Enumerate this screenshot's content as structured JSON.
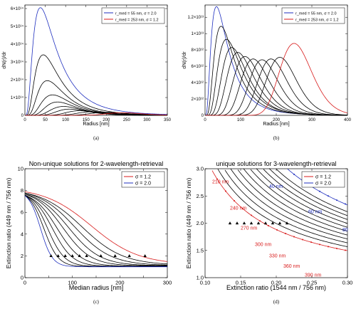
{
  "chart_data": [
    {
      "id": "a",
      "type": "line",
      "caption": "(a)",
      "xlabel": "Radius [nm]",
      "ylabel": "dN(r)/dr",
      "xlim": [
        0,
        350
      ],
      "ylim": [
        0,
        620000000000000.0
      ],
      "xticks": [
        0,
        50,
        100,
        150,
        200,
        250,
        300,
        350
      ],
      "yticks": [
        0,
        100000000000000.0,
        200000000000000.0,
        300000000000000.0,
        400000000000000.0,
        500000000000000.0,
        600000000000000.0
      ],
      "ytick_labels": [
        "0",
        "1×10¹⁴",
        "2×10¹⁴",
        "3×10¹⁴",
        "4×10¹⁴",
        "5×10¹⁴",
        "6×10¹⁴"
      ],
      "legend": [
        {
          "label": "r_med = 55 nm, σ = 2.0",
          "color": "#1f2fbf"
        },
        {
          "label": "r_med = 253 nm, σ = 1.2",
          "color": "#d81b1b"
        }
      ],
      "legend_position": "top-right",
      "curves": [
        {
          "color": "#1f2fbf",
          "peak_x": 38,
          "peak_y": 605000000000000.0,
          "width": 0.72,
          "kind": "lognormal"
        },
        {
          "color": "#000000",
          "peak_x": 45,
          "peak_y": 340000000000000.0,
          "width": 0.65,
          "kind": "lognormal"
        },
        {
          "color": "#000000",
          "peak_x": 55,
          "peak_y": 195000000000000.0,
          "width": 0.58,
          "kind": "lognormal"
        },
        {
          "color": "#000000",
          "peak_x": 68,
          "peak_y": 115000000000000.0,
          "width": 0.52,
          "kind": "lognormal"
        },
        {
          "color": "#000000",
          "peak_x": 80,
          "peak_y": 75000000000000.0,
          "width": 0.46,
          "kind": "lognormal"
        },
        {
          "color": "#000000",
          "peak_x": 95,
          "peak_y": 50000000000000.0,
          "width": 0.4,
          "kind": "lognormal"
        },
        {
          "color": "#000000",
          "peak_x": 110,
          "peak_y": 35000000000000.0,
          "width": 0.34,
          "kind": "lognormal"
        },
        {
          "color": "#000000",
          "peak_x": 135,
          "peak_y": 26000000000000.0,
          "width": 0.28,
          "kind": "lognormal"
        },
        {
          "color": "#000000",
          "peak_x": 165,
          "peak_y": 20000000000000.0,
          "width": 0.24,
          "kind": "lognormal"
        },
        {
          "color": "#000000",
          "peak_x": 200,
          "peak_y": 17000000000000.0,
          "width": 0.21,
          "kind": "lognormal"
        },
        {
          "color": "#d81b1b",
          "peak_x": 240,
          "peak_y": 14500000000000.0,
          "width": 0.18,
          "kind": "lognormal"
        }
      ]
    },
    {
      "id": "b",
      "type": "line",
      "caption": "(b)",
      "xlabel": "Radius [nm]",
      "ylabel": "dN(r)/dr",
      "xlim": [
        0,
        400
      ],
      "ylim": [
        0,
        13500000000000.0
      ],
      "xticks": [
        0,
        100,
        200,
        300,
        400
      ],
      "yticks": [
        0,
        2000000000000.0,
        4000000000000.0,
        6000000000000.0,
        8000000000000.0,
        10000000000000.0,
        12000000000000.0
      ],
      "ytick_labels": [
        "0",
        "2×10¹²",
        "4×10¹²",
        "6×10¹²",
        "8×10¹²",
        "1×10¹³",
        "1.2×10¹³"
      ],
      "legend": [
        {
          "label": "r_med = 55 nm, σ = 2.0",
          "color": "#1f2fbf"
        },
        {
          "label": "r_med = 253 nm, σ = 1.2",
          "color": "#d81b1b"
        }
      ],
      "legend_position": "top-right",
      "curves": [
        {
          "color": "#1f2fbf",
          "peak_x": 32,
          "peak_y": 13300000000000.0,
          "width": 0.72
        },
        {
          "color": "#000000",
          "peak_x": 45,
          "peak_y": 10900000000000.0,
          "width": 0.62
        },
        {
          "color": "#000000",
          "peak_x": 60,
          "peak_y": 9300000000000.0,
          "width": 0.54
        },
        {
          "color": "#000000",
          "peak_x": 75,
          "peak_y": 8300000000000.0,
          "width": 0.46
        },
        {
          "color": "#000000",
          "peak_x": 92,
          "peak_y": 7700000000000.0,
          "width": 0.4
        },
        {
          "color": "#000000",
          "peak_x": 112,
          "peak_y": 7200000000000.0,
          "width": 0.34
        },
        {
          "color": "#000000",
          "peak_x": 135,
          "peak_y": 6900000000000.0,
          "width": 0.29
        },
        {
          "color": "#000000",
          "peak_x": 160,
          "peak_y": 6800000000000.0,
          "width": 0.25
        },
        {
          "color": "#000000",
          "peak_x": 185,
          "peak_y": 6900000000000.0,
          "width": 0.22
        },
        {
          "color": "#000000",
          "peak_x": 210,
          "peak_y": 7100000000000.0,
          "width": 0.2
        },
        {
          "color": "#d81b1b",
          "peak_x": 250,
          "peak_y": 8800000000000.0,
          "width": 0.18
        }
      ]
    },
    {
      "id": "c",
      "type": "line",
      "caption": "(c)",
      "title": "Non-unique solutions for 2-wavelength-retrieval",
      "xlabel": "Median radius [nm]",
      "ylabel": "Extinction ratio (449 nm / 756 nm)",
      "xlim": [
        0,
        300
      ],
      "ylim": [
        0,
        10
      ],
      "xticks": [
        0,
        50,
        100,
        150,
        200,
        250,
        300
      ],
      "xtick_labels": [
        "0",
        "",
        "100",
        "",
        "200",
        "",
        "300"
      ],
      "yticks": [
        0,
        2,
        4,
        6,
        8,
        10
      ],
      "legend": [
        {
          "label": "σ = 1.2",
          "color": "#d81b1b"
        },
        {
          "label": "σ = 2.0",
          "color": "#1f2fbf"
        }
      ],
      "legend_position": "top-right",
      "curves": [
        {
          "color": "#d81b1b",
          "start": 8.3,
          "end": 1.2,
          "mid": 140,
          "k": 0.02
        },
        {
          "color": "#000000",
          "start": 8.2,
          "end": 1.15,
          "mid": 120,
          "k": 0.023
        },
        {
          "color": "#000000",
          "start": 8.2,
          "end": 1.12,
          "mid": 105,
          "k": 0.026
        },
        {
          "color": "#000000",
          "start": 8.1,
          "end": 1.1,
          "mid": 92,
          "k": 0.03
        },
        {
          "color": "#000000",
          "start": 8.1,
          "end": 1.08,
          "mid": 80,
          "k": 0.034
        },
        {
          "color": "#000000",
          "start": 8.0,
          "end": 1.05,
          "mid": 68,
          "k": 0.04
        },
        {
          "color": "#000000",
          "start": 8.0,
          "end": 1.03,
          "mid": 58,
          "k": 0.047
        },
        {
          "color": "#000000",
          "start": 8.0,
          "end": 1.02,
          "mid": 48,
          "k": 0.056
        },
        {
          "color": "#000000",
          "start": 8.0,
          "end": 1.01,
          "mid": 40,
          "k": 0.066
        },
        {
          "color": "#1f2fbf",
          "start": 8.0,
          "end": 1.0,
          "mid": 33,
          "k": 0.08
        }
      ],
      "markers": {
        "symbol": "triangle",
        "x": [
          55,
          70,
          85,
          100,
          115,
          130,
          160,
          190,
          220,
          253
        ],
        "y": [
          2.0,
          2.0,
          2.0,
          2.0,
          2.0,
          2.0,
          2.0,
          2.0,
          2.0,
          2.0
        ]
      }
    },
    {
      "id": "d",
      "type": "line",
      "caption": "(d)",
      "title": "unique solutions for 3-wavelength-retrieval",
      "xlabel": "Extinction ratio (1544 nm / 756 nm)",
      "ylabel": "Extinction ratio (449 nm / 756 nm)",
      "xlim": [
        0.1,
        0.3
      ],
      "ylim": [
        1.0,
        3.0
      ],
      "xticks": [
        0.1,
        0.15,
        0.2,
        0.25,
        0.3
      ],
      "xtick_labels": [
        "0.10",
        "0.15",
        "0.20",
        "0.25",
        "0.30"
      ],
      "yticks": [
        1.0,
        1.5,
        2.0,
        2.5,
        3.0
      ],
      "ytick_labels": [
        "1.0",
        "1.5",
        "2.0",
        "2.5",
        "3.0"
      ],
      "legend": [
        {
          "label": "σ = 1.2",
          "color": "#d81b1b"
        },
        {
          "label": "σ = 2.0",
          "color": "#1f2fbf"
        }
      ],
      "legend_position": "top-right",
      "curves": [
        {
          "color": "#d81b1b",
          "a": 0.195
        },
        {
          "color": "#000000",
          "a": 0.215
        },
        {
          "color": "#000000",
          "a": 0.235
        },
        {
          "color": "#000000",
          "a": 0.255
        },
        {
          "color": "#000000",
          "a": 0.275
        },
        {
          "color": "#000000",
          "a": 0.295
        },
        {
          "color": "#000000",
          "a": 0.315
        },
        {
          "color": "#000000",
          "a": 0.335
        },
        {
          "color": "#000000",
          "a": 0.355
        },
        {
          "color": "#000000",
          "a": 0.375
        },
        {
          "color": "#000000",
          "a": 0.395
        },
        {
          "color": "#1f2fbf",
          "a": 0.43
        }
      ],
      "red_annotations": [
        {
          "text": "210 nm",
          "x": 0.11,
          "y": 2.73
        },
        {
          "text": "240 nm",
          "x": 0.135,
          "y": 2.25
        },
        {
          "text": "270 nm",
          "x": 0.15,
          "y": 1.88
        },
        {
          "text": "300 nm",
          "x": 0.17,
          "y": 1.58
        },
        {
          "text": "330 nm",
          "x": 0.19,
          "y": 1.37
        },
        {
          "text": "360 nm",
          "x": 0.21,
          "y": 1.18
        },
        {
          "text": "390 nm",
          "x": 0.24,
          "y": 1.02
        }
      ],
      "blue_annotations": [
        {
          "text": "40 nm",
          "x": 0.19,
          "y": 2.65
        },
        {
          "text": "60 nm",
          "x": 0.245,
          "y": 2.18
        },
        {
          "text": "80",
          "x": 0.293,
          "y": 1.85
        }
      ],
      "markers": {
        "symbol": "triangle",
        "x": [
          0.135,
          0.145,
          0.155,
          0.165,
          0.175,
          0.185,
          0.195,
          0.205,
          0.215
        ],
        "y": [
          2.0,
          2.0,
          2.0,
          2.0,
          2.0,
          2.0,
          2.0,
          2.0,
          2.0
        ]
      }
    }
  ]
}
